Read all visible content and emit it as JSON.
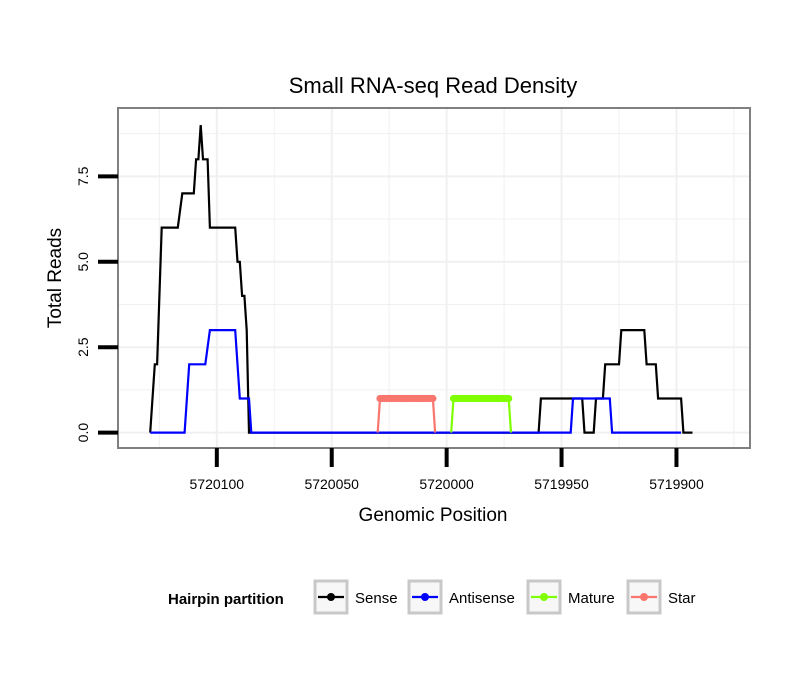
{
  "chart_data": {
    "type": "line",
    "title": "Small RNA-seq Read Density",
    "xlabel": "Genomic Position",
    "ylabel": "Total Reads",
    "xlim": [
      5720143,
      5719868
    ],
    "ylim": [
      -0.45,
      9.5
    ],
    "x_reversed": true,
    "xticks": [
      5720100,
      5720050,
      5720000,
      5719950,
      5719900
    ],
    "xtick_labels": [
      "5720100",
      "5720050",
      "5720000",
      "5719950",
      "5719900"
    ],
    "yticks": [
      0,
      2.5,
      5,
      7.5
    ],
    "ytick_labels": [
      "0.0",
      "2.5",
      "5.0",
      "7.5"
    ],
    "grid": true,
    "legend": {
      "title": "Hairpin partition",
      "position": "bottom",
      "entries": [
        "Sense",
        "Antisense",
        "Mature",
        "Star"
      ]
    },
    "series": [
      {
        "name": "Sense",
        "color": "#000000",
        "points": [
          [
            5720129,
            0
          ],
          [
            5720127,
            2
          ],
          [
            5720126,
            2
          ],
          [
            5720124,
            6
          ],
          [
            5720117,
            6
          ],
          [
            5720115,
            7
          ],
          [
            5720110,
            7
          ],
          [
            5720109,
            8
          ],
          [
            5720108,
            8
          ],
          [
            5720107,
            9
          ],
          [
            5720106,
            8
          ],
          [
            5720104,
            8
          ],
          [
            5720103,
            6
          ],
          [
            5720092,
            6
          ],
          [
            5720091,
            5
          ],
          [
            5720090,
            5
          ],
          [
            5720089,
            4
          ],
          [
            5720088,
            4
          ],
          [
            5720087,
            3
          ],
          [
            5720086,
            0
          ],
          [
            5719960,
            0
          ],
          [
            5719959,
            1
          ],
          [
            5719941,
            1
          ],
          [
            5719940,
            0
          ],
          [
            5719936,
            0
          ],
          [
            5719935,
            1
          ],
          [
            5719932,
            1
          ],
          [
            5719931,
            2
          ],
          [
            5719925,
            2
          ],
          [
            5719924,
            3
          ],
          [
            5719914,
            3
          ],
          [
            5719913,
            2
          ],
          [
            5719909,
            2
          ],
          [
            5719908,
            1
          ],
          [
            5719898,
            1
          ],
          [
            5719897,
            0
          ],
          [
            5719893,
            0
          ]
        ]
      },
      {
        "name": "Antisense",
        "color": "#0000ff",
        "points": [
          [
            5720129,
            0
          ],
          [
            5720114,
            0
          ],
          [
            5720112,
            2
          ],
          [
            5720105,
            2
          ],
          [
            5720103,
            3
          ],
          [
            5720092,
            3
          ],
          [
            5720091,
            2
          ],
          [
            5720090,
            1
          ],
          [
            5720086,
            1
          ],
          [
            5720085,
            0
          ],
          [
            5719946,
            0
          ],
          [
            5719945,
            1
          ],
          [
            5719929,
            1
          ],
          [
            5719928,
            0
          ],
          [
            5719898,
            0
          ]
        ]
      },
      {
        "name": "Mature",
        "color": "#7fff00",
        "points": [
          [
            5719998,
            0
          ],
          [
            5719997,
            1
          ],
          [
            5719973,
            1
          ],
          [
            5719972,
            0
          ]
        ]
      },
      {
        "name": "Star",
        "color": "#f8766d",
        "points": [
          [
            5720030,
            0
          ],
          [
            5720029,
            1
          ],
          [
            5720006,
            1
          ],
          [
            5720005,
            0
          ]
        ]
      }
    ]
  }
}
